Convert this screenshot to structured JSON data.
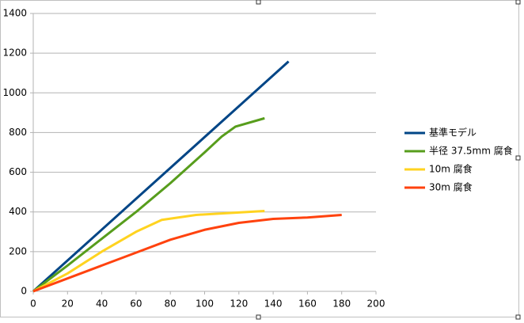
{
  "chart_data": {
    "type": "line",
    "series": [
      {
        "name": "基準モデル",
        "color": "#004586",
        "x": [
          0,
          149
        ],
        "values": [
          0,
          1158
        ]
      },
      {
        "name": "半径 37.5mm 腐食",
        "color": "#579d1c",
        "x": [
          0,
          20,
          40,
          60,
          80,
          100,
          110,
          118,
          135
        ],
        "values": [
          0,
          130,
          265,
          400,
          545,
          700,
          780,
          830,
          872
        ]
      },
      {
        "name": "10m 腐食",
        "color": "#ffd320",
        "x": [
          0,
          20,
          40,
          60,
          75,
          95,
          115,
          135
        ],
        "values": [
          0,
          90,
          200,
          300,
          360,
          385,
          395,
          405
        ]
      },
      {
        "name": "30m 腐食",
        "color": "#ff420e",
        "x": [
          0,
          20,
          40,
          60,
          80,
          100,
          120,
          140,
          160,
          180
        ],
        "values": [
          0,
          65,
          130,
          195,
          260,
          310,
          345,
          365,
          372,
          385
        ]
      }
    ],
    "xlim": [
      0,
      200
    ],
    "xticks": [
      0,
      20,
      40,
      60,
      80,
      100,
      120,
      140,
      160,
      180,
      200
    ],
    "ylim": [
      0,
      1400
    ],
    "yticks": [
      0,
      200,
      400,
      600,
      800,
      1000,
      1200,
      1400
    ],
    "grid": true,
    "legend": "right"
  }
}
